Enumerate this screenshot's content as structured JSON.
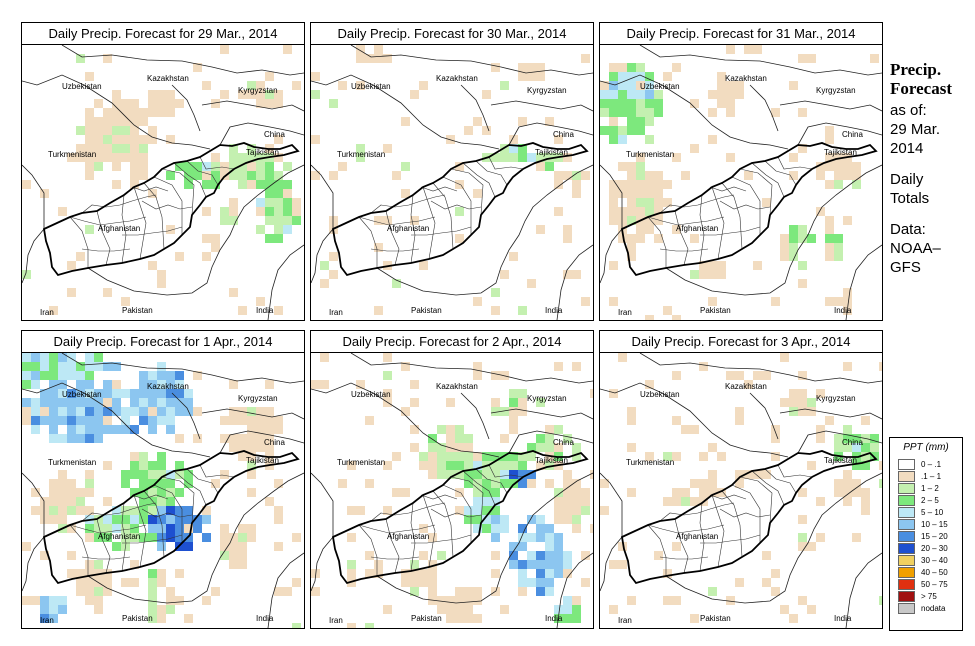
{
  "panels": [
    {
      "title": "Daily Precip. Forecast for  29 Mar., 2014",
      "day": 0
    },
    {
      "title": "Daily Precip. Forecast for  30 Mar., 2014",
      "day": 1
    },
    {
      "title": "Daily Precip. Forecast for  31 Mar., 2014",
      "day": 2
    },
    {
      "title": "Daily Precip. Forecast for  1 Apr., 2014",
      "day": 3
    },
    {
      "title": "Daily Precip. Forecast for  2 Apr., 2014",
      "day": 4
    },
    {
      "title": "Daily Precip. Forecast for  3 Apr., 2014",
      "day": 5
    }
  ],
  "countries": {
    "kazakhstan": "Kazakhstan",
    "uzbekistan": "Uzbekistan",
    "kyrgyzstan": "Kyrgyzstan",
    "china": "China",
    "tajikistan": "Tajikistan",
    "turkmenistan": "Turkmenistan",
    "afghanistan": "Afghanistan",
    "pakistan": "Pakistan",
    "iran": "Iran",
    "india": "India"
  },
  "sidebar": {
    "title_line1": "Precip.",
    "title_line2": "Forecast",
    "asof_line1": "as of:",
    "asof_line2": "29 Mar.",
    "asof_line3": "2014",
    "totals_line1": "Daily",
    "totals_line2": "Totals",
    "data_line1": "Data:",
    "data_line2": "NOAA–",
    "data_line3": "GFS"
  },
  "legend": {
    "title": "PPT (mm)",
    "entries": [
      {
        "label": "0 – .1",
        "color": "#ffffff"
      },
      {
        "label": ".1 – 1",
        "color": "#f2dcc0"
      },
      {
        "label": "1 – 2",
        "color": "#c4f0b0"
      },
      {
        "label": "2 – 5",
        "color": "#7de87d"
      },
      {
        "label": "5 – 10",
        "color": "#bde8f5"
      },
      {
        "label": "10 – 15",
        "color": "#8cc6f0"
      },
      {
        "label": "15 – 20",
        "color": "#4a8ee0"
      },
      {
        "label": "20 – 30",
        "color": "#1e50d0"
      },
      {
        "label": "30 – 40",
        "color": "#f0d060"
      },
      {
        "label": "40 – 50",
        "color": "#f0a000"
      },
      {
        "label": "50 – 75",
        "color": "#e03010"
      },
      {
        "label": "> 75",
        "color": "#a01010"
      },
      {
        "label": "nodata",
        "color": "#c8c8c8"
      }
    ]
  }
}
